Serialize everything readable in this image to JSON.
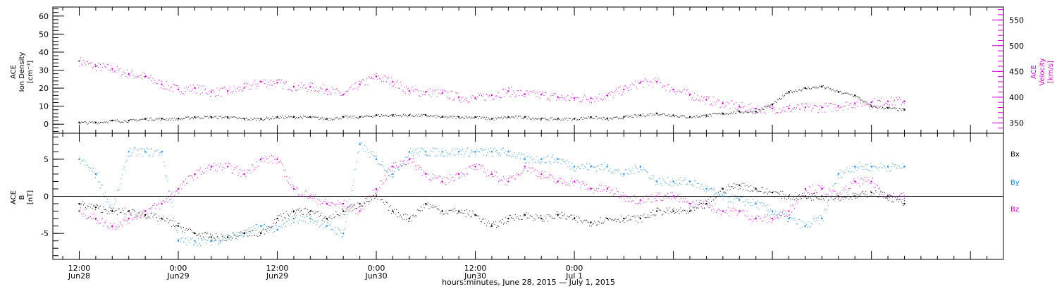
{
  "chart_data": [
    {
      "type": "scatter",
      "panel": "top",
      "ylabel_left": [
        "ACE",
        "Ion Density",
        "[cm⁻³]"
      ],
      "ylabel_right": [
        "ACE",
        "Velocity",
        "[km/s]"
      ],
      "ylim_left": [
        -5,
        65
      ],
      "yticks_left": [
        0,
        10,
        20,
        30,
        40,
        50,
        60
      ],
      "ylim_right": [
        330,
        575
      ],
      "yticks_right": [
        350,
        400,
        450,
        500,
        550
      ],
      "colors": {
        "density": "#000000",
        "velocity": "#cc00cc"
      },
      "series": [
        {
          "name": "Ion Density",
          "axis": "left",
          "x_hours": [
            0,
            2,
            4,
            6,
            8,
            10,
            12,
            14,
            16,
            18,
            20,
            22,
            24,
            26,
            28,
            30,
            32,
            34,
            36,
            38,
            40,
            42,
            44,
            46,
            48,
            50,
            52,
            54,
            56,
            58,
            60,
            62,
            64,
            66,
            68,
            70,
            72,
            74,
            76,
            78,
            80,
            82,
            84,
            86,
            88,
            90,
            92,
            94,
            96,
            98,
            100
          ],
          "values": [
            1,
            1,
            2,
            2,
            3,
            3,
            3,
            4,
            4,
            4,
            3,
            3,
            4,
            4,
            4,
            3,
            4,
            4,
            5,
            5,
            5,
            5,
            4,
            4,
            4,
            3,
            4,
            4,
            3,
            3,
            3,
            4,
            3,
            4,
            5,
            6,
            5,
            4,
            5,
            6,
            7,
            7,
            11,
            18,
            20,
            21,
            18,
            16,
            10,
            9,
            8
          ]
        },
        {
          "name": "Velocity",
          "axis": "right",
          "x_hours": [
            0,
            2,
            4,
            6,
            8,
            10,
            12,
            14,
            16,
            18,
            20,
            22,
            24,
            26,
            28,
            30,
            32,
            34,
            36,
            38,
            40,
            42,
            44,
            46,
            48,
            50,
            52,
            54,
            56,
            58,
            60,
            62,
            64,
            66,
            68,
            70,
            72,
            74,
            76,
            78,
            80,
            82,
            84,
            86,
            88,
            90,
            92,
            94,
            96,
            98,
            100
          ],
          "values": [
            470,
            460,
            455,
            445,
            440,
            425,
            415,
            418,
            410,
            412,
            418,
            430,
            428,
            420,
            420,
            415,
            405,
            425,
            440,
            430,
            412,
            410,
            408,
            400,
            398,
            404,
            412,
            406,
            405,
            400,
            398,
            398,
            403,
            415,
            428,
            430,
            415,
            405,
            395,
            388,
            382,
            378,
            378,
            378,
            380,
            380,
            383,
            388,
            390,
            392,
            392
          ]
        }
      ]
    },
    {
      "type": "scatter",
      "panel": "bottom",
      "ylabel": [
        "ACE",
        "B",
        "[nT]"
      ],
      "ylim": [
        -8.5,
        8.5
      ],
      "yticks": [
        -5,
        0,
        5
      ],
      "legend": [
        {
          "label": "Bx",
          "color": "#000000"
        },
        {
          "label": "By",
          "color": "#1a8ad9"
        },
        {
          "label": "Bz",
          "color": "#cc00cc"
        }
      ],
      "series": [
        {
          "name": "Bx",
          "x_hours": [
            0,
            2,
            4,
            6,
            8,
            10,
            12,
            14,
            16,
            18,
            20,
            22,
            24,
            26,
            28,
            30,
            32,
            34,
            36,
            38,
            40,
            42,
            44,
            46,
            48,
            50,
            52,
            54,
            56,
            58,
            60,
            62,
            64,
            66,
            68,
            70,
            72,
            74,
            76,
            78,
            80,
            82,
            84,
            86,
            88,
            90,
            92,
            94,
            96,
            98,
            100
          ],
          "values": [
            -1,
            -1.5,
            -2,
            -2,
            -2.5,
            -3,
            -4,
            -5,
            -5.5,
            -5.5,
            -5,
            -5,
            -3,
            -2,
            -2,
            -3,
            -2,
            -1,
            0,
            -2,
            -3,
            -1,
            -2,
            -2,
            -2.5,
            -4,
            -3,
            -2.5,
            -3,
            -2.5,
            -3,
            -3.5,
            -3,
            -3,
            -3,
            -2,
            -2,
            -2,
            -1,
            1,
            1.5,
            1,
            0.5,
            0,
            0,
            0,
            0,
            0,
            0.5,
            0,
            -1
          ]
        },
        {
          "name": "By",
          "x_hours": [
            0,
            2,
            4,
            6,
            8,
            10,
            12,
            14,
            16,
            18,
            20,
            22,
            24,
            26,
            28,
            30,
            32,
            34,
            36,
            38,
            40,
            42,
            44,
            46,
            48,
            50,
            52,
            54,
            56,
            58,
            60,
            62,
            64,
            66,
            68,
            70,
            72,
            74,
            76,
            78,
            80,
            82,
            84,
            86,
            88,
            90,
            92,
            94,
            96,
            98,
            100
          ],
          "values": [
            5,
            3,
            -2,
            6,
            6,
            6,
            -6,
            -6,
            -6,
            -5.5,
            -5,
            -4,
            -4.5,
            -3,
            -3,
            -4,
            -5,
            7,
            5,
            3,
            6,
            6,
            6,
            6,
            6,
            6,
            6,
            5,
            5,
            5,
            4,
            4,
            4,
            3,
            4,
            2,
            2,
            2,
            1,
            0,
            -0.5,
            -1,
            -2,
            -3,
            -4,
            -3,
            3,
            4,
            4,
            4,
            4
          ]
        },
        {
          "name": "Bz",
          "x_hours": [
            0,
            2,
            4,
            6,
            8,
            10,
            12,
            14,
            16,
            18,
            20,
            22,
            24,
            26,
            28,
            30,
            32,
            34,
            36,
            38,
            40,
            42,
            44,
            46,
            48,
            50,
            52,
            54,
            56,
            58,
            60,
            62,
            64,
            66,
            68,
            70,
            72,
            74,
            76,
            78,
            80,
            82,
            84,
            86,
            88,
            90,
            92,
            94,
            96,
            98,
            100
          ],
          "values": [
            -2,
            -3,
            -4,
            -3,
            -2,
            -1,
            1,
            3,
            4,
            4,
            3,
            5,
            5,
            1,
            0,
            -1,
            -1,
            -2,
            1,
            4,
            5,
            3,
            2,
            3,
            4,
            3,
            2,
            4,
            3,
            2,
            2,
            1,
            1,
            0,
            -0.5,
            0,
            0,
            -1,
            -1,
            -2,
            -2,
            -3,
            -3,
            -2,
            1,
            1,
            0,
            2,
            2,
            0,
            0
          ]
        }
      ]
    }
  ],
  "x_axis": {
    "tick_labels": [
      {
        "hour": 0,
        "time": "12:00",
        "date": "Jun28"
      },
      {
        "hour": 12,
        "time": "0:00",
        "date": "Jun29"
      },
      {
        "hour": 24,
        "time": "12:00",
        "date": "Jun29"
      },
      {
        "hour": 36,
        "time": "0:00",
        "date": "Jun30"
      },
      {
        "hour": 48,
        "time": "12:00",
        "date": "Jun30"
      },
      {
        "hour": 60,
        "time": "0:00",
        "date": "Jul 1"
      }
    ],
    "xlabel": "hours:minutes, June 28, 2015 — July  1, 2015"
  }
}
